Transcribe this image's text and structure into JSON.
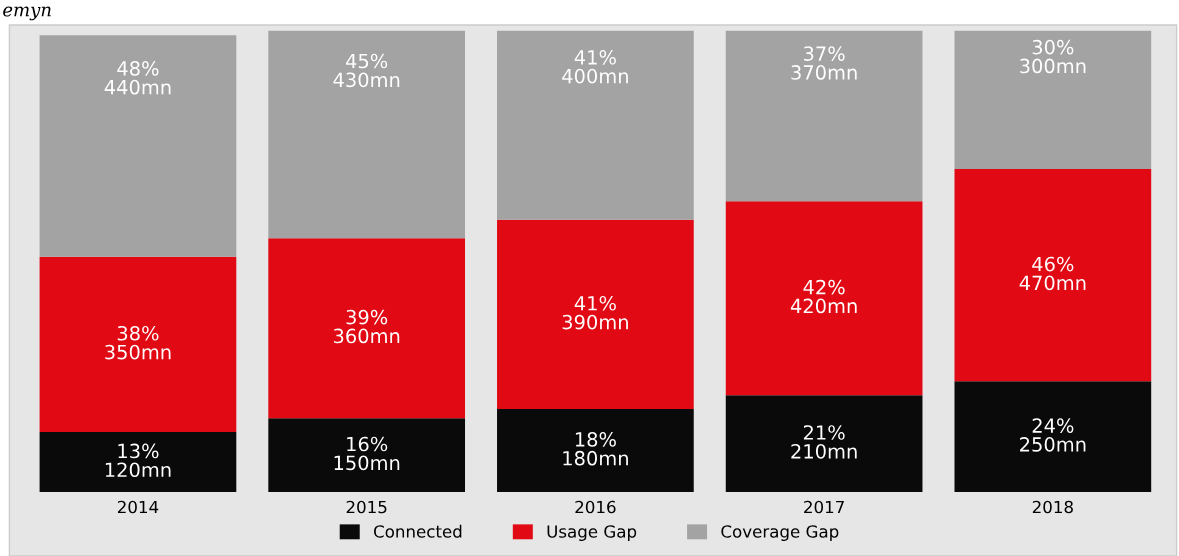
{
  "chart_data": {
    "type": "bar",
    "stacked": true,
    "categories": [
      "2014",
      "2015",
      "2016",
      "2017",
      "2018"
    ],
    "series": [
      {
        "name": "Connected",
        "color": "#0a0a0a",
        "values": [
          13,
          16,
          18,
          21,
          24
        ],
        "value_labels": [
          "13%\n120mn",
          "16%\n150mn",
          "18%\n180mn",
          "21%\n210mn",
          "24%\n250mn"
        ]
      },
      {
        "name": "Usage Gap",
        "color": "#e10a14",
        "values": [
          38,
          39,
          41,
          42,
          46
        ],
        "value_labels": [
          "38%\n350mn",
          "39%\n360mn",
          "41%\n390mn",
          "42%\n420mn",
          "46%\n470mn"
        ]
      },
      {
        "name": "Coverage Gap",
        "color": "#a3a3a3",
        "values": [
          48,
          45,
          41,
          37,
          30
        ],
        "value_labels": [
          "48%\n440mn",
          "45%\n430mn",
          "41%\n400mn",
          "37%\n370mn",
          "30%\n300mn"
        ]
      }
    ],
    "legend": "bottom",
    "annotations": [
      "emyn"
    ]
  }
}
